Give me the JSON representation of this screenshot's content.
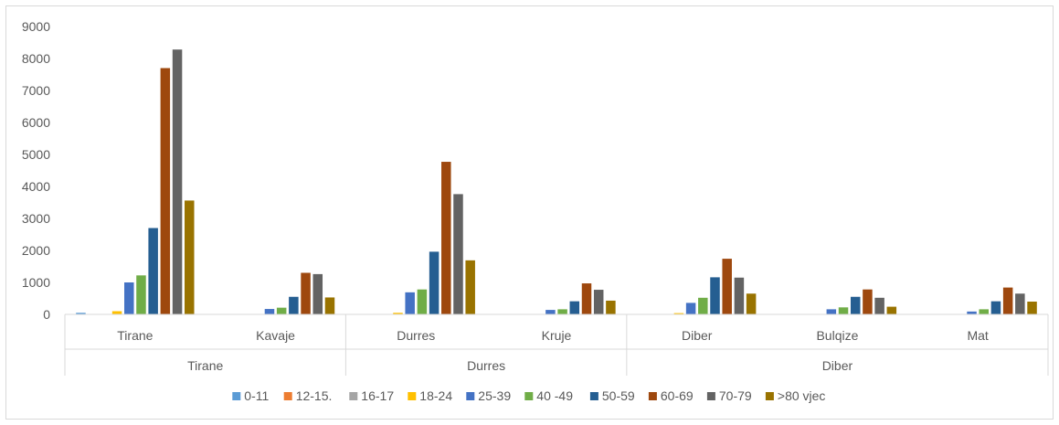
{
  "chart_data": {
    "type": "bar",
    "title": "",
    "xlabel": "",
    "ylabel": "",
    "ylim": [
      0,
      9000
    ],
    "yticks": [
      0,
      1000,
      2000,
      3000,
      4000,
      5000,
      6000,
      7000,
      8000,
      9000
    ],
    "grid": false,
    "legend_position": "bottom",
    "categories": [
      "Tirane",
      "Kavaje",
      "Durres",
      "Kruje",
      "Diber",
      "Bulqize",
      "Mat"
    ],
    "groups": [
      {
        "label": "Tirane",
        "categories": [
          "Tirane",
          "Kavaje"
        ]
      },
      {
        "label": "Durres",
        "categories": [
          "Durres",
          "Kruje"
        ]
      },
      {
        "label": "Diber",
        "categories": [
          "Diber",
          "Bulqize",
          "Mat"
        ]
      }
    ],
    "series": [
      {
        "name": "0-11",
        "color": "#5b9bd5",
        "values": [
          50,
          0,
          0,
          0,
          0,
          0,
          0
        ]
      },
      {
        "name": "12-15.",
        "color": "#ed7d31",
        "values": [
          0,
          0,
          0,
          0,
          0,
          0,
          0
        ]
      },
      {
        "name": "16-17",
        "color": "#a5a5a5",
        "values": [
          0,
          0,
          0,
          0,
          0,
          0,
          0
        ]
      },
      {
        "name": "18-24",
        "color": "#ffc000",
        "values": [
          100,
          0,
          50,
          0,
          40,
          0,
          0
        ]
      },
      {
        "name": "25-39",
        "color": "#4472c4",
        "values": [
          1000,
          170,
          690,
          140,
          360,
          160,
          90
        ]
      },
      {
        "name": "40 -49",
        "color": "#70ad47",
        "values": [
          1220,
          210,
          780,
          160,
          520,
          220,
          160
        ]
      },
      {
        "name": "50-59",
        "color": "#255e91",
        "values": [
          2700,
          550,
          1960,
          410,
          1160,
          550,
          410
        ]
      },
      {
        "name": "60-69",
        "color": "#9e480e",
        "values": [
          7700,
          1300,
          4770,
          970,
          1740,
          780,
          840
        ]
      },
      {
        "name": "70-79",
        "color": "#636363",
        "values": [
          8280,
          1260,
          3760,
          770,
          1150,
          520,
          650
        ]
      },
      {
        "name": ">80 vjec",
        "color": "#997300",
        "values": [
          3560,
          530,
          1690,
          430,
          650,
          240,
          400
        ]
      }
    ]
  }
}
